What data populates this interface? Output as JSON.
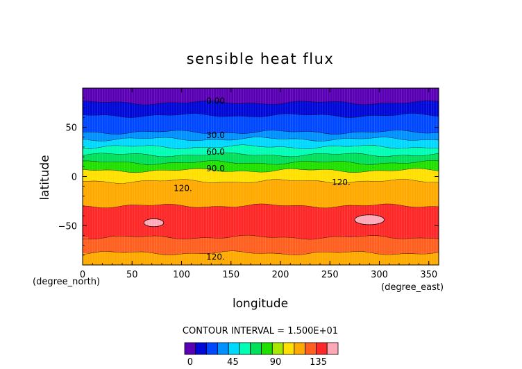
{
  "chart_data": {
    "type": "heatmap",
    "title": "sensible heat flux",
    "xlabel": "longitude",
    "ylabel": "latitude",
    "x_unit": "(degree_east)",
    "y_unit": "(degree_north)",
    "xlim": [
      0,
      360
    ],
    "ylim": [
      -90,
      90
    ],
    "x_ticks": [
      0,
      50,
      100,
      150,
      200,
      250,
      300,
      350
    ],
    "y_ticks": [
      -50,
      0,
      50
    ],
    "contour_interval_text": "CONTOUR INTERVAL = 1.500E+01",
    "colorbar": {
      "levels": [
        0,
        15,
        30,
        45,
        60,
        75,
        90,
        105,
        120,
        135,
        150
      ],
      "tick_labels": [
        "0",
        "45",
        "90",
        "135"
      ],
      "tick_values": [
        0,
        45,
        90,
        135
      ],
      "colors": [
        "#5a00b4",
        "#0008d8",
        "#0048ff",
        "#0090ff",
        "#00d8ff",
        "#00ffb4",
        "#00e05a",
        "#20e000",
        "#a8e800",
        "#ffe000",
        "#ffaa00",
        "#ff6020",
        "#ff2828",
        "#ffa8b8"
      ]
    },
    "bands": [
      {
        "from_lat": 90,
        "to_lat": 75,
        "value": "<0",
        "color": "#5a00b4"
      },
      {
        "from_lat": 75,
        "to_lat": 62,
        "value": "0-15",
        "color": "#0008d8"
      },
      {
        "from_lat": 62,
        "to_lat": 45,
        "value": "15-30",
        "color": "#0048ff"
      },
      {
        "from_lat": 45,
        "to_lat": 38,
        "value": "30-37",
        "color": "#0090ff"
      },
      {
        "from_lat": 38,
        "to_lat": 30,
        "value": "37-45",
        "color": "#00d8ff"
      },
      {
        "from_lat": 30,
        "to_lat": 22,
        "value": "45-60",
        "color": "#00ffb4"
      },
      {
        "from_lat": 22,
        "to_lat": 14,
        "value": "60-75",
        "color": "#00e05a"
      },
      {
        "from_lat": 14,
        "to_lat": 6,
        "value": "75-90",
        "color": "#20e000"
      },
      {
        "from_lat": 6,
        "to_lat": -5,
        "value": "90-105",
        "color": "#ffe000"
      },
      {
        "from_lat": -5,
        "to_lat": -30,
        "value": "105-120",
        "color": "#ffaa00"
      },
      {
        "from_lat": -30,
        "to_lat": -62,
        "value": "120-135",
        "color": "#ff2828"
      },
      {
        "from_lat": -62,
        "to_lat": -78,
        "value": "105-120",
        "color": "#ff6020"
      },
      {
        "from_lat": -78,
        "to_lat": -90,
        "value": "90-105",
        "color": "#ffaa00"
      }
    ],
    "peak_patches": [
      {
        "lon": 72,
        "lat": -47,
        "w_lon": 20,
        "h_lat": 8,
        "color": "#ffa8b8"
      },
      {
        "lon": 290,
        "lat": -44,
        "w_lon": 30,
        "h_lat": 10,
        "color": "#ffa8b8"
      }
    ],
    "contour_labels": [
      {
        "text": "0.00",
        "lon": 125,
        "lat": 77
      },
      {
        "text": "30.0",
        "lon": 125,
        "lat": 42
      },
      {
        "text": "60.0",
        "lon": 125,
        "lat": 25
      },
      {
        "text": "90.0",
        "lon": 125,
        "lat": 8
      },
      {
        "text": "120.",
        "lon": 92,
        "lat": -12
      },
      {
        "text": "120.",
        "lon": 252,
        "lat": -6
      },
      {
        "text": "120.",
        "lon": 125,
        "lat": -82
      }
    ]
  }
}
